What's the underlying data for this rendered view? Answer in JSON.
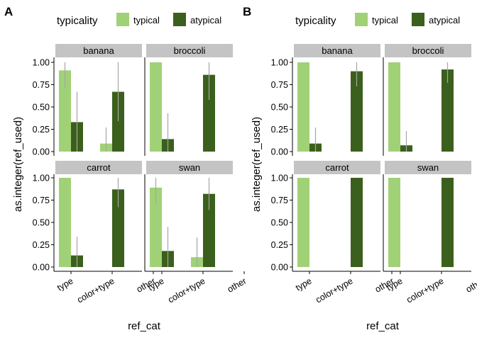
{
  "colors": {
    "typical": "#a1d176",
    "atypical": "#3b5f1c",
    "errorbar": "#a6a6a6",
    "strip": "#c4c4c4",
    "axis": "#000000"
  },
  "chart_data": [
    {
      "label": "A",
      "type": "bar",
      "legend": {
        "title": "typicality",
        "position": "top",
        "entries": [
          "typical",
          "atypical"
        ]
      },
      "xlabel": "ref_cat",
      "ylabel": "as.integer(ref_used)",
      "categories": [
        "type",
        "color+type",
        "other"
      ],
      "yticks": [
        "0.00",
        "0.25",
        "0.50",
        "0.75",
        "1.00"
      ],
      "ylim": [
        0,
        1
      ],
      "facets": [
        {
          "name": "banana",
          "bars": [
            {
              "cat": "type",
              "series": "typical",
              "value": 0.91,
              "lo": 0.72,
              "hi": 1.0
            },
            {
              "cat": "type",
              "series": "atypical",
              "value": 0.33,
              "lo": 0.0,
              "hi": 0.67
            },
            {
              "cat": "color+type",
              "series": "typical",
              "value": 0.09,
              "lo": 0.0,
              "hi": 0.27
            },
            {
              "cat": "color+type",
              "series": "atypical",
              "value": 0.67,
              "lo": 0.34,
              "hi": 1.0
            }
          ]
        },
        {
          "name": "broccoli",
          "bars": [
            {
              "cat": "type",
              "series": "typical",
              "value": 1.0
            },
            {
              "cat": "type",
              "series": "atypical",
              "value": 0.14,
              "lo": 0.0,
              "hi": 0.43
            },
            {
              "cat": "color+type",
              "series": "atypical",
              "value": 0.86,
              "lo": 0.58,
              "hi": 1.0
            }
          ]
        },
        {
          "name": "carrot",
          "bars": [
            {
              "cat": "type",
              "series": "typical",
              "value": 1.0
            },
            {
              "cat": "type",
              "series": "atypical",
              "value": 0.13,
              "lo": 0.0,
              "hi": 0.34
            },
            {
              "cat": "color+type",
              "series": "atypical",
              "value": 0.87,
              "lo": 0.67,
              "hi": 1.0
            }
          ]
        },
        {
          "name": "swan",
          "bars": [
            {
              "cat": "type",
              "series": "typical",
              "value": 0.89,
              "lo": 0.7,
              "hi": 1.0
            },
            {
              "cat": "type",
              "series": "atypical",
              "value": 0.18,
              "lo": 0.0,
              "hi": 0.45
            },
            {
              "cat": "color+type",
              "series": "typical",
              "value": 0.11,
              "lo": 0.0,
              "hi": 0.33
            },
            {
              "cat": "color+type",
              "series": "atypical",
              "value": 0.82,
              "lo": 0.64,
              "hi": 1.0
            }
          ]
        }
      ]
    },
    {
      "label": "B",
      "type": "bar",
      "legend": {
        "title": "typicality",
        "position": "top",
        "entries": [
          "typical",
          "atypical"
        ]
      },
      "xlabel": "ref_cat",
      "ylabel": "as.integer(ref_used)",
      "categories": [
        "type",
        "color+type",
        "other"
      ],
      "yticks": [
        "0.00",
        "0.25",
        "0.50",
        "0.75",
        "1.00"
      ],
      "ylim": [
        0,
        1
      ],
      "facets": [
        {
          "name": "banana",
          "bars": [
            {
              "cat": "type",
              "series": "typical",
              "value": 1.0
            },
            {
              "cat": "type",
              "series": "atypical",
              "value": 0.09,
              "lo": 0.0,
              "hi": 0.27
            },
            {
              "cat": "color+type",
              "series": "atypical",
              "value": 0.9,
              "lo": 0.73,
              "hi": 1.0
            }
          ]
        },
        {
          "name": "broccoli",
          "bars": [
            {
              "cat": "type",
              "series": "typical",
              "value": 1.0
            },
            {
              "cat": "type",
              "series": "atypical",
              "value": 0.07,
              "lo": 0.0,
              "hi": 0.23
            },
            {
              "cat": "color+type",
              "series": "atypical",
              "value": 0.92,
              "lo": 0.77,
              "hi": 1.0
            }
          ]
        },
        {
          "name": "carrot",
          "bars": [
            {
              "cat": "type",
              "series": "typical",
              "value": 1.0
            },
            {
              "cat": "color+type",
              "series": "atypical",
              "value": 1.0
            }
          ]
        },
        {
          "name": "swan",
          "bars": [
            {
              "cat": "type",
              "series": "typical",
              "value": 1.0
            },
            {
              "cat": "color+type",
              "series": "atypical",
              "value": 1.0
            }
          ]
        }
      ]
    }
  ]
}
